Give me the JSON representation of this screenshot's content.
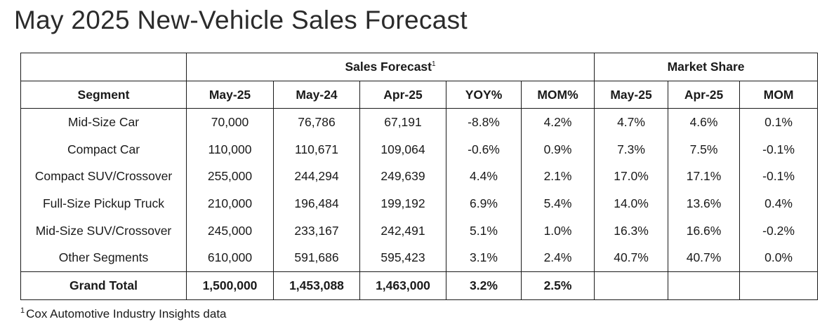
{
  "title": "May 2025 New-Vehicle Sales Forecast",
  "table": {
    "group_headers": {
      "sales_forecast": "Sales Forecast",
      "sales_forecast_footnote_marker": "1",
      "market_share": "Market Share"
    },
    "columns": [
      "Segment",
      "May-25",
      "May-24",
      "Apr-25",
      "YOY%",
      "MOM%",
      "May-25",
      "Apr-25",
      "MOM"
    ],
    "rows": [
      [
        "Mid-Size Car",
        "70,000",
        "76,786",
        "67,191",
        "-8.8%",
        "4.2%",
        "4.7%",
        "4.6%",
        "0.1%"
      ],
      [
        "Compact Car",
        "110,000",
        "110,671",
        "109,064",
        "-0.6%",
        "0.9%",
        "7.3%",
        "7.5%",
        "-0.1%"
      ],
      [
        "Compact SUV/Crossover",
        "255,000",
        "244,294",
        "249,639",
        "4.4%",
        "2.1%",
        "17.0%",
        "17.1%",
        "-0.1%"
      ],
      [
        "Full-Size Pickup Truck",
        "210,000",
        "196,484",
        "199,192",
        "6.9%",
        "5.4%",
        "14.0%",
        "13.6%",
        "0.4%"
      ],
      [
        "Mid-Size SUV/Crossover",
        "245,000",
        "233,167",
        "242,491",
        "5.1%",
        "1.0%",
        "16.3%",
        "16.6%",
        "-0.2%"
      ],
      [
        "Other Segments",
        "610,000",
        "591,686",
        "595,423",
        "3.1%",
        "2.4%",
        "40.7%",
        "40.7%",
        "0.0%"
      ]
    ],
    "total": [
      "Grand Total",
      "1,500,000",
      "1,453,088",
      "1,463,000",
      "3.2%",
      "2.5%",
      "",
      "",
      ""
    ]
  },
  "footnote": {
    "marker": "1",
    "text": "Cox Automotive Industry Insights data"
  }
}
